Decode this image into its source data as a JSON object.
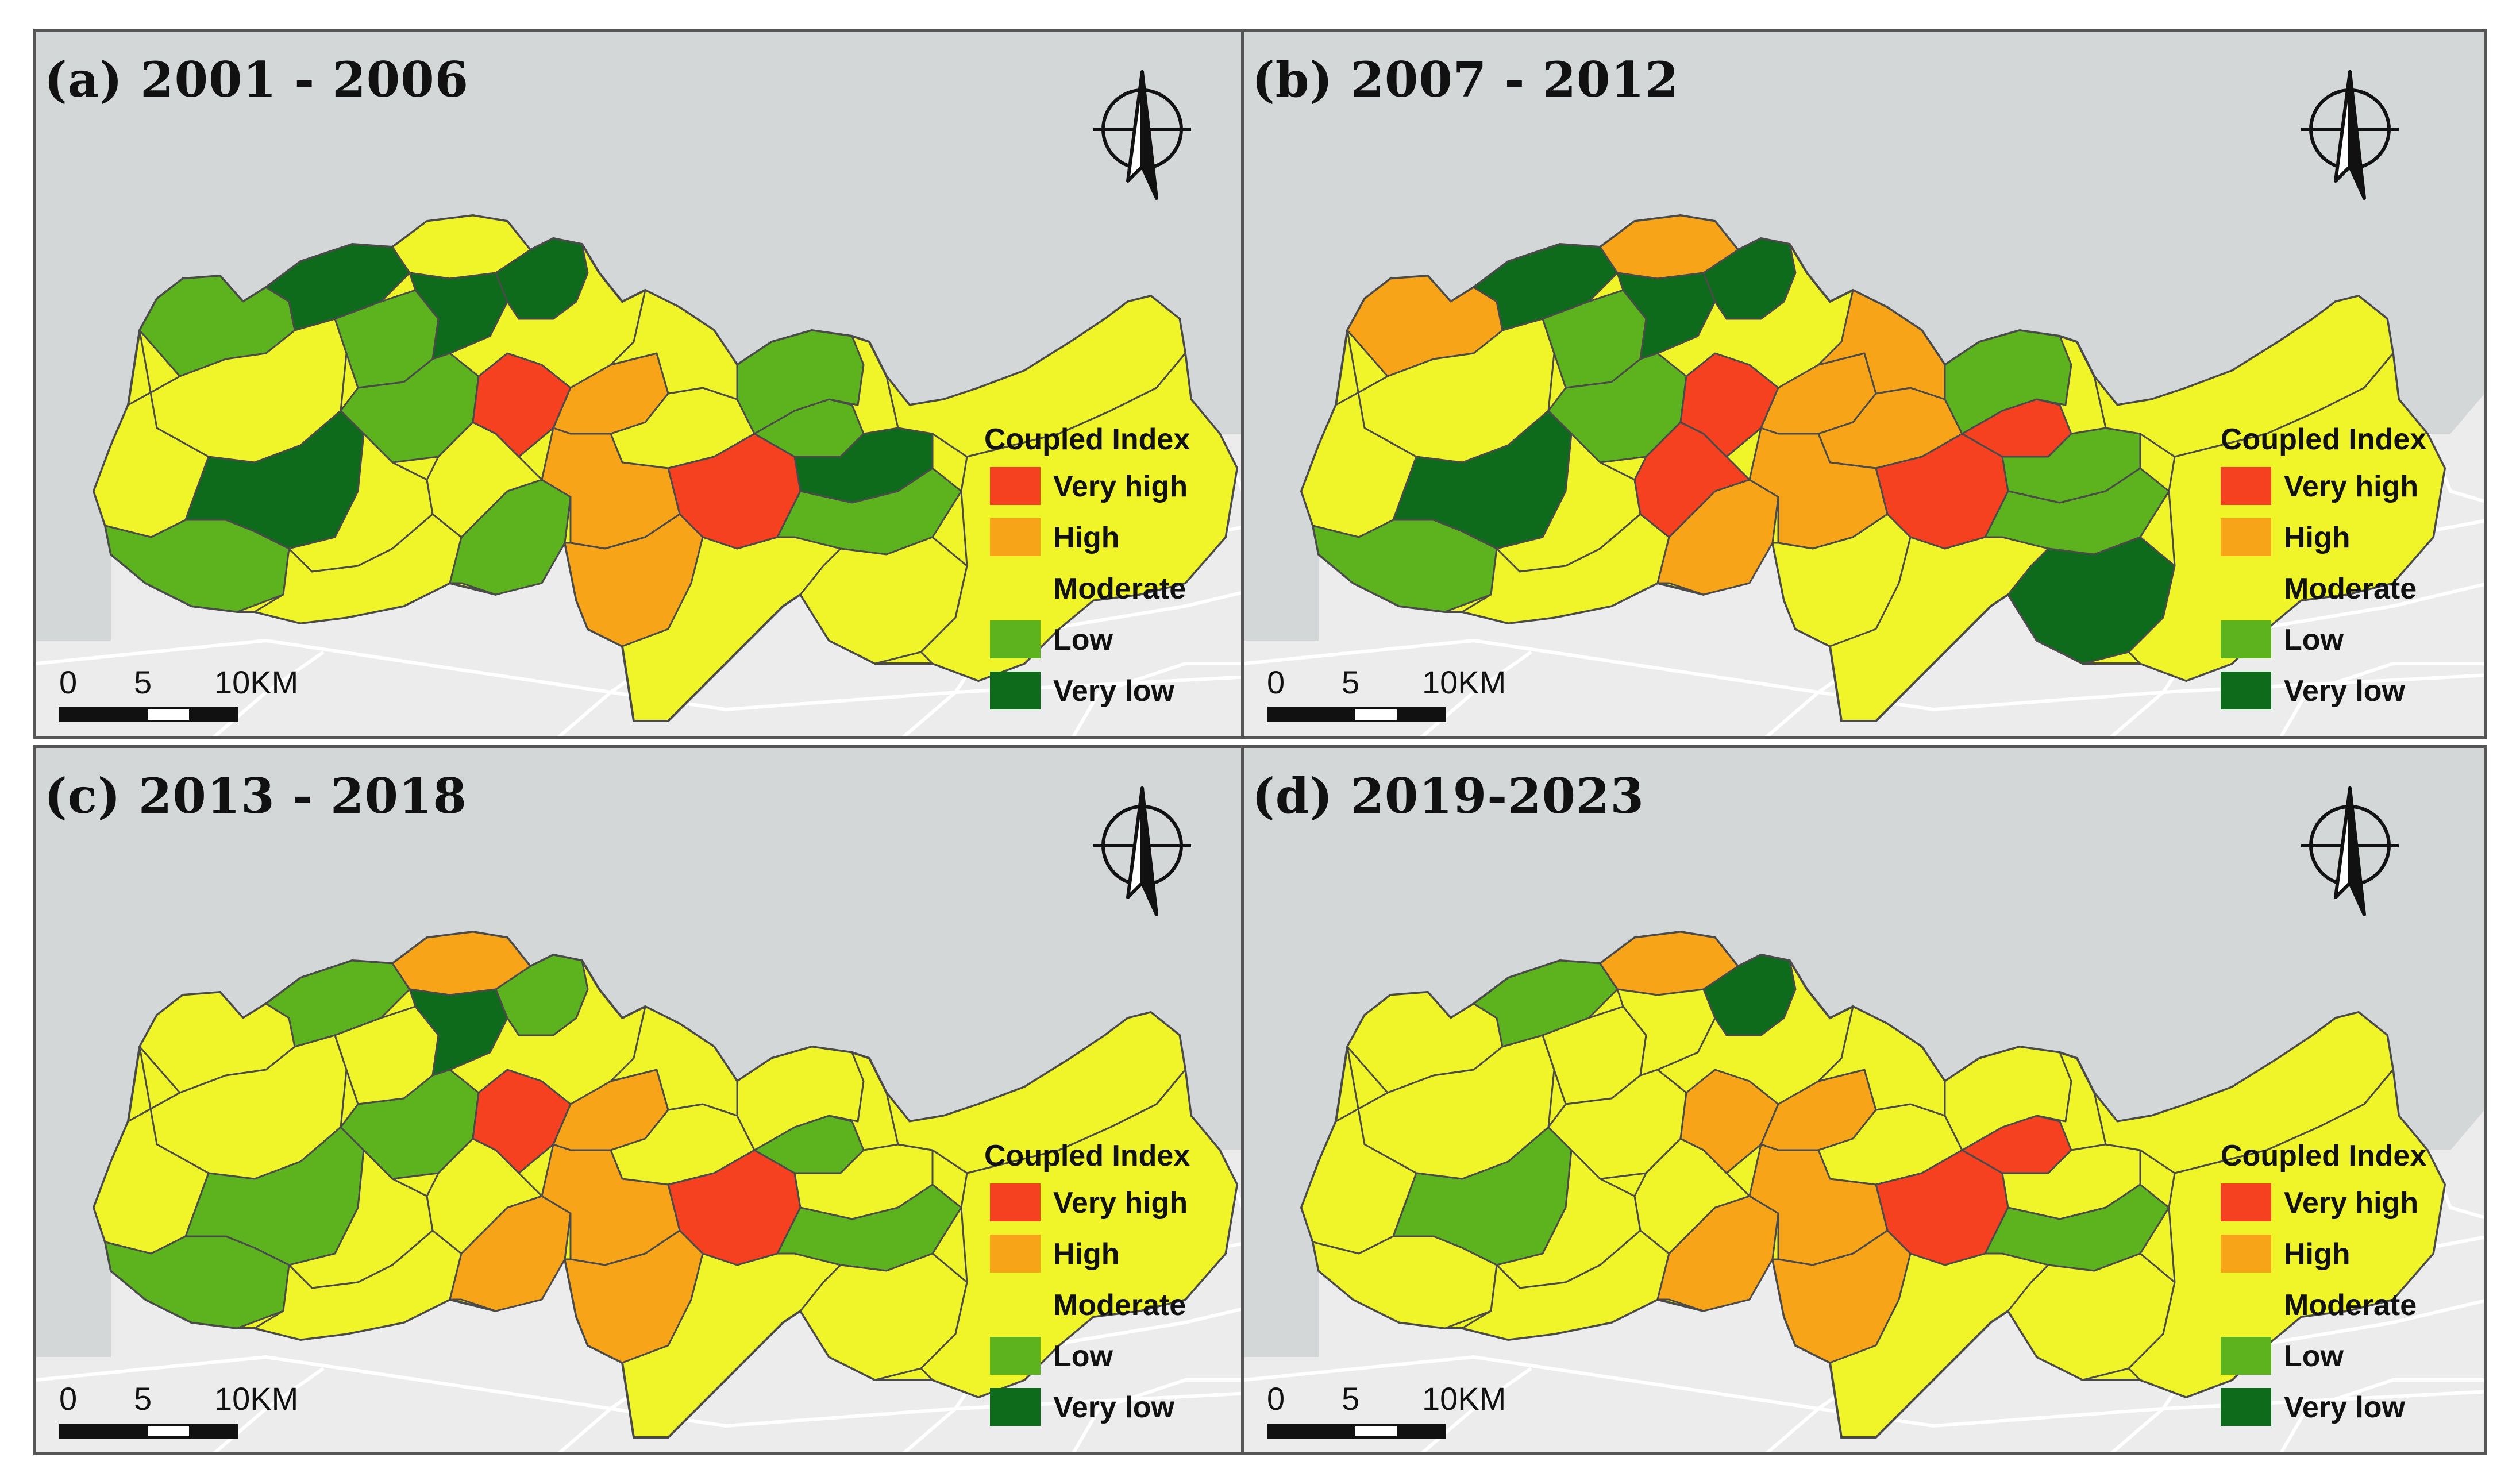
{
  "figure": {
    "panels": [
      {
        "id": "a",
        "title": "(a) 2001 - 2006",
        "regions": [
          "low",
          "verylow",
          "moderate",
          "moderate",
          "verylow",
          "low",
          "low",
          "moderate",
          "verylow",
          "low",
          "moderate",
          "moderate",
          "low",
          "moderate",
          "veryhigh",
          "high",
          "moderate",
          "veryhigh",
          "high",
          "high",
          "low",
          "verylow",
          "low",
          "moderate",
          "moderate",
          "low",
          "verylow"
        ]
      },
      {
        "id": "b",
        "title": "(b) 2007 - 2012",
        "regions": [
          "high",
          "verylow",
          "moderate",
          "moderate",
          "verylow",
          "low",
          "low",
          "high",
          "verylow",
          "low",
          "moderate",
          "moderate",
          "high",
          "veryhigh",
          "veryhigh",
          "high",
          "high",
          "veryhigh",
          "high",
          "moderate",
          "veryhigh",
          "low",
          "low",
          "verylow",
          "high",
          "low",
          "verylow"
        ]
      },
      {
        "id": "c",
        "title": "(c) 2013 - 2018",
        "regions": [
          "moderate",
          "low",
          "moderate",
          "moderate",
          "low",
          "low",
          "moderate",
          "high",
          "verylow",
          "low",
          "moderate",
          "moderate",
          "high",
          "moderate",
          "veryhigh",
          "high",
          "moderate",
          "veryhigh",
          "high",
          "high",
          "low",
          "moderate",
          "low",
          "moderate",
          "moderate",
          "moderate",
          "low"
        ]
      },
      {
        "id": "d",
        "title": "(d) 2019-2023",
        "regions": [
          "moderate",
          "low",
          "moderate",
          "moderate",
          "low",
          "moderate",
          "moderate",
          "high",
          "moderate",
          "moderate",
          "moderate",
          "moderate",
          "high",
          "moderate",
          "high",
          "high",
          "moderate",
          "veryhigh",
          "high",
          "high",
          "veryhigh",
          "moderate",
          "low",
          "moderate",
          "moderate",
          "moderate",
          "verylow"
        ]
      }
    ],
    "legend": {
      "title": "Coupled Index",
      "items": [
        {
          "key": "veryhigh",
          "label": "Very high",
          "color": "#f5411f"
        },
        {
          "key": "high",
          "label": "High",
          "color": "#f8a419"
        },
        {
          "key": "moderate",
          "label": "Moderate",
          "color": "#f0f52a"
        },
        {
          "key": "low",
          "label": "Low",
          "color": "#5cb31e"
        },
        {
          "key": "verylow",
          "label": "Very low",
          "color": "#0d6b1b"
        }
      ]
    },
    "scale_bar": {
      "ticks": [
        "0",
        "5",
        "10KM"
      ]
    },
    "colors": {
      "sea": "#d4d7d8",
      "land_bg": "#ececec",
      "border": "#4a4a4a",
      "road": "#ffffff"
    },
    "icons": {
      "north_arrow": "north-arrow-icon"
    }
  }
}
